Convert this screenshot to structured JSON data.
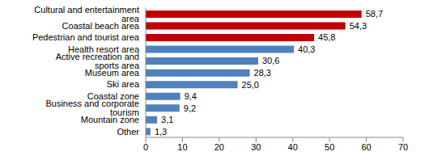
{
  "chart_data": {
    "type": "bar",
    "orientation": "horizontal",
    "categories": [
      "Cultural and entertainment area",
      "Coastal beach area",
      "Pedestrian and tourist area",
      "Health resort area",
      "Active recreation and sports area",
      "Museum area",
      "Ski area",
      "Coastal zone",
      "Business and corporate tourism",
      "Mountain zone",
      "Other"
    ],
    "values": [
      58.7,
      54.3,
      45.8,
      40.3,
      30.6,
      28.3,
      25.0,
      9.4,
      9.2,
      3.1,
      1.3
    ],
    "value_labels": [
      "58,7",
      "54,3",
      "45,8",
      "40,3",
      "30,6",
      "28,3",
      "25,0",
      "9,4",
      "9,2",
      "3,1",
      "1,3"
    ],
    "colors": [
      "#c00000",
      "#c00000",
      "#c00000",
      "#4f81bd",
      "#4f81bd",
      "#4f81bd",
      "#4f81bd",
      "#4f81bd",
      "#4f81bd",
      "#4f81bd",
      "#4f81bd"
    ],
    "xlim": [
      0,
      70
    ],
    "xticks": [
      0,
      10,
      20,
      30,
      40,
      50,
      60,
      70
    ],
    "grid": false,
    "data_labels": true
  }
}
